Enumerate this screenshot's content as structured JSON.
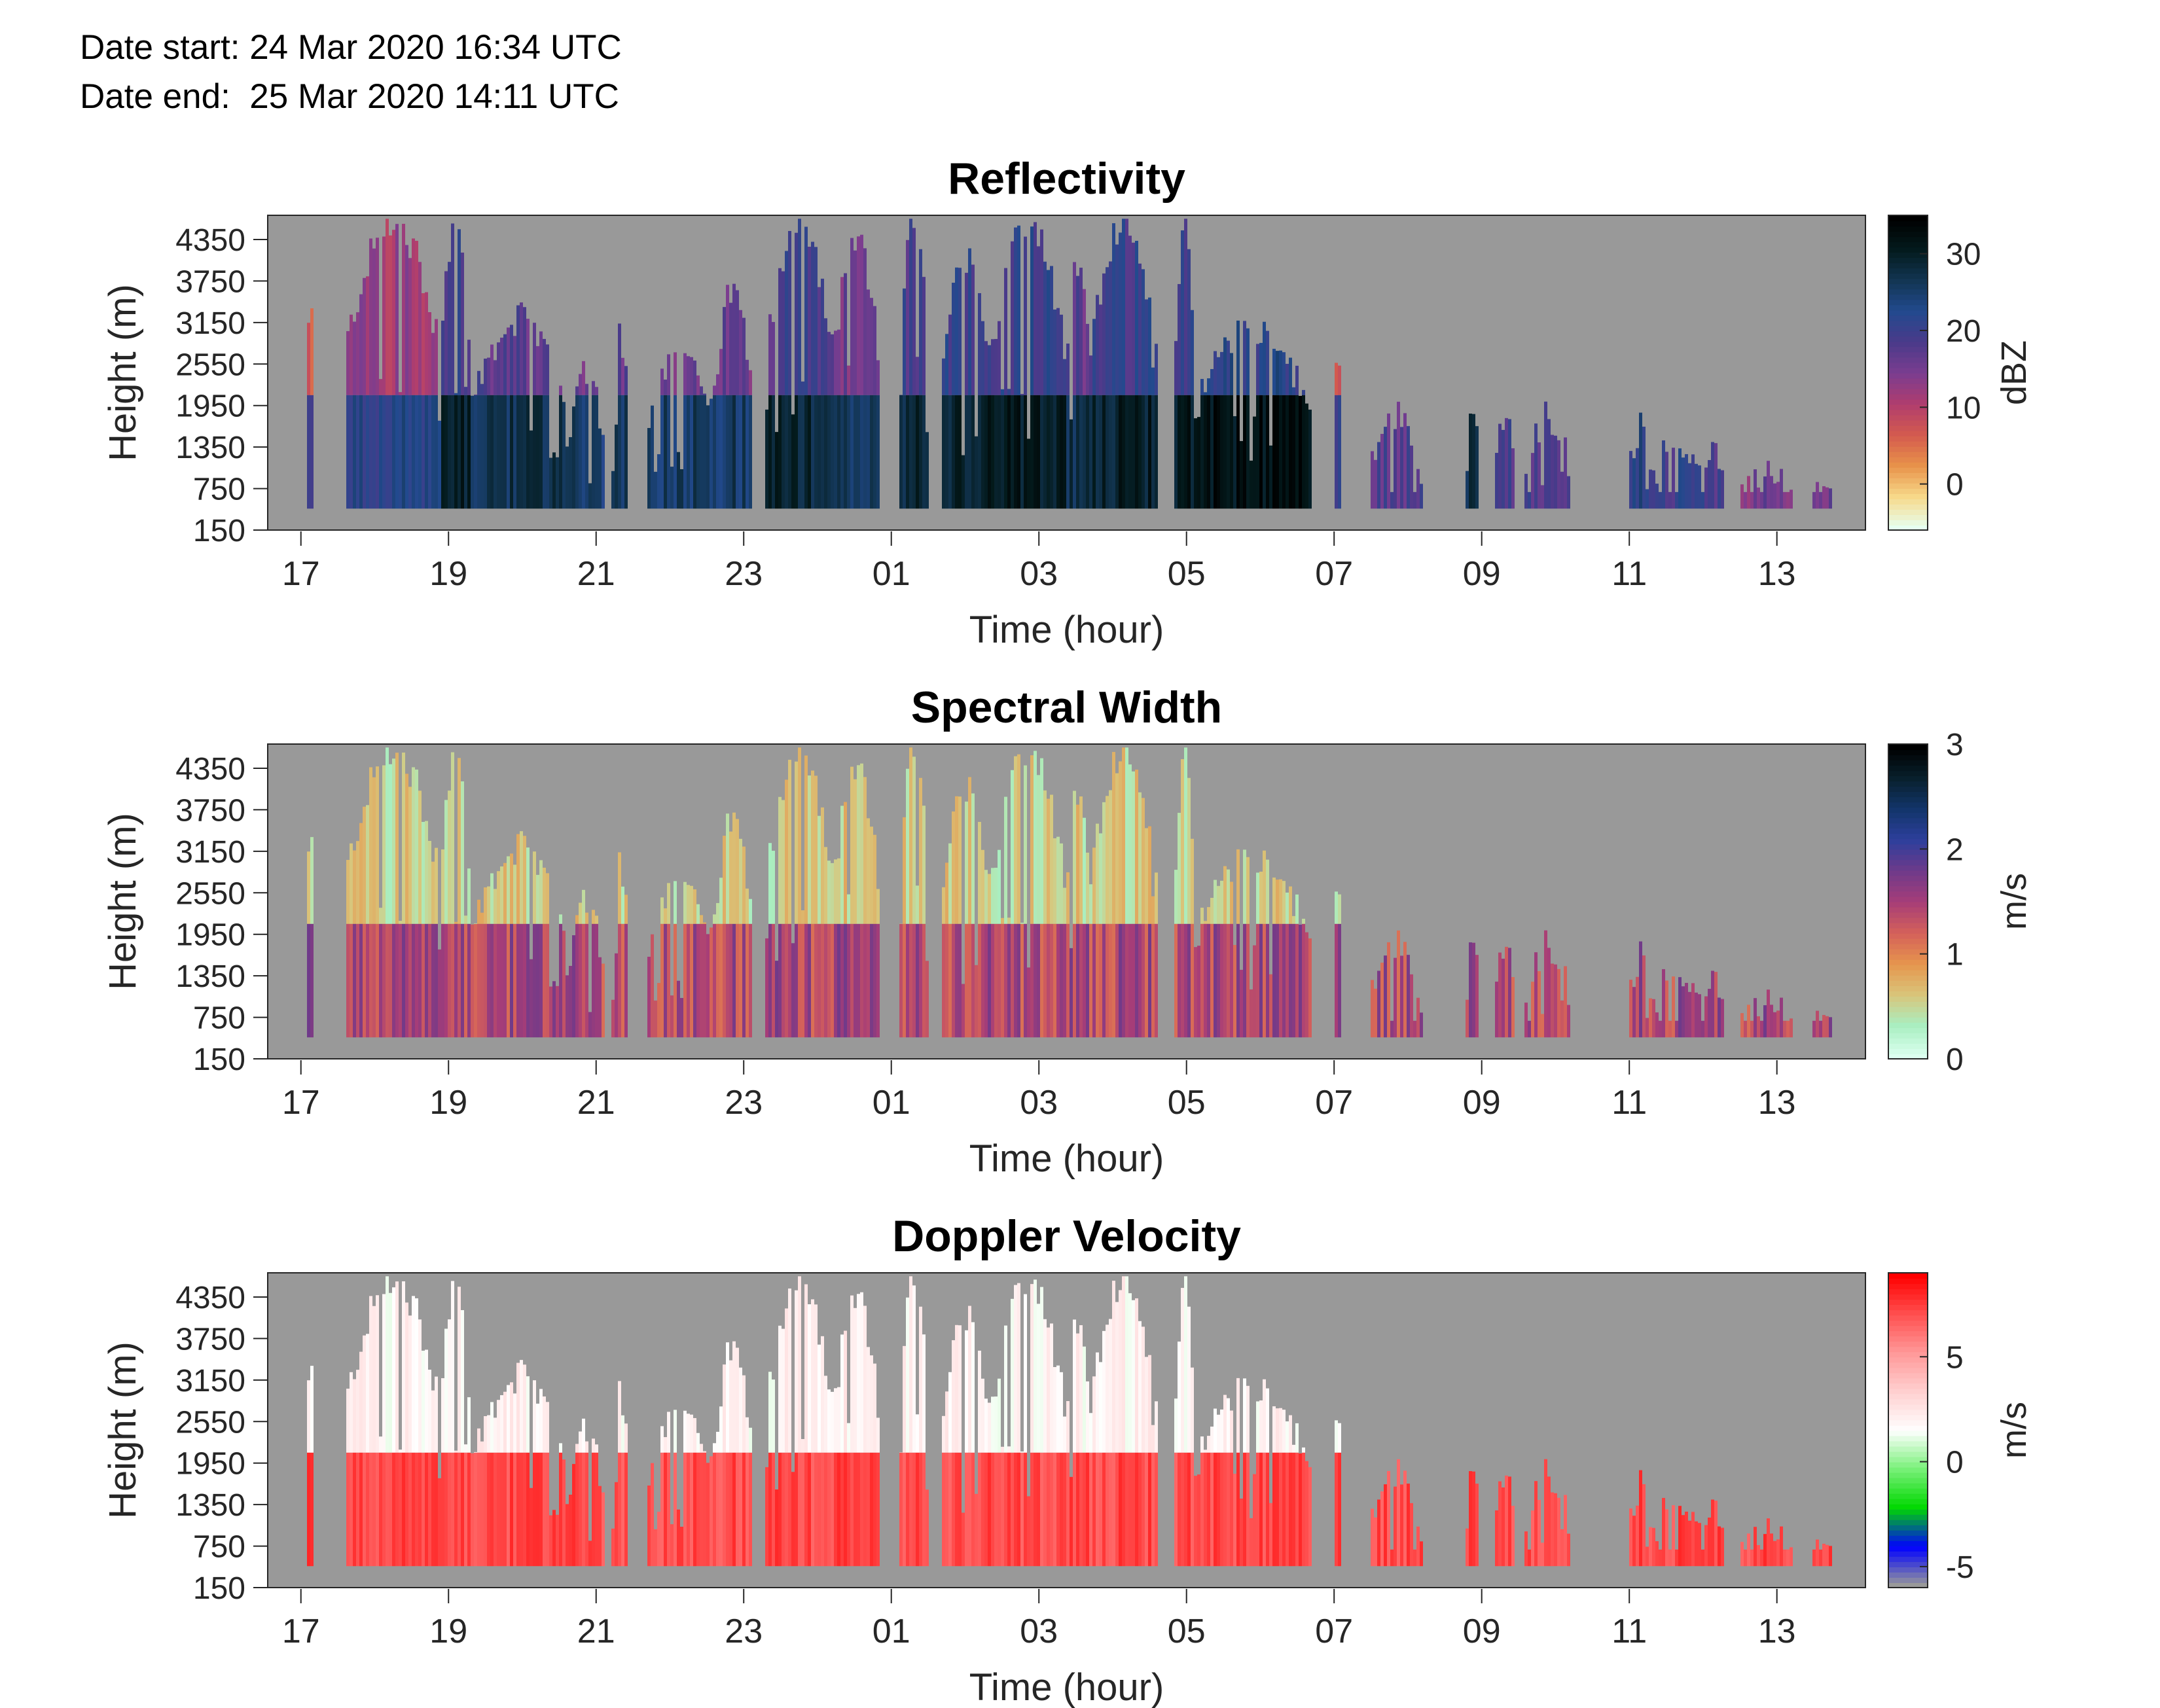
{
  "header": {
    "date_start": "Date start: 24 Mar 2020 16:34 UTC",
    "date_end": "Date end:  25 Mar 2020 14:11 UTC"
  },
  "colors": {
    "no_data": "#999999",
    "reflectivity_scale": [
      "#e6fff0",
      "#f7d98a",
      "#e8934a",
      "#d45a4e",
      "#b03d6e",
      "#7a3d90",
      "#4a3a8a",
      "#224a8e",
      "#123552",
      "#031a1c",
      "#000000"
    ],
    "spectral_width_scale": [
      "#dcfff0",
      "#a9efc1",
      "#d9c57a",
      "#e6954d",
      "#d4605a",
      "#a63d78",
      "#6e3a8a",
      "#2d3f9c",
      "#12356a",
      "#08202c",
      "#000000"
    ],
    "doppler_velocity_scale": [
      "#999999",
      "#0000ff",
      "#00d800",
      "#77f077",
      "#ffffff",
      "#ffd0d0",
      "#ff9999",
      "#ff5050",
      "#ff0000"
    ]
  },
  "chart_data": [
    {
      "type": "heatmap",
      "title": "Reflectivity",
      "xlabel": "Time (hour)",
      "ylabel": "Height (m)",
      "x_ticks": [
        "17",
        "19",
        "21",
        "23",
        "01",
        "03",
        "05",
        "07",
        "09",
        "11",
        "13"
      ],
      "y_ticks": [
        "150",
        "750",
        "1350",
        "1950",
        "2550",
        "3150",
        "3750",
        "4350"
      ],
      "colorbar_label": "dBZ",
      "colorbar_ticks": [
        "0",
        "10",
        "20",
        "30"
      ],
      "colorbar_range": [
        -6,
        35
      ],
      "xlim": [
        16.55,
        38.2
      ],
      "ylim": [
        150,
        4700
      ],
      "grid": false,
      "echo_bottom_m": 460,
      "melting_layer_m": 2100,
      "echo_segments": [
        {
          "start": 17.08,
          "end": 17.18,
          "top": 3500,
          "value": 12
        },
        {
          "start": 17.6,
          "end": 18.9,
          "top": 4600,
          "value": 17
        },
        {
          "start": 18.9,
          "end": 19.3,
          "top": 4600,
          "value": 25
        },
        {
          "start": 19.3,
          "end": 20.6,
          "top": 3200,
          "value": 22
        },
        {
          "start": 20.6,
          "end": 21.1,
          "top": 2500,
          "value": 20
        },
        {
          "start": 21.2,
          "end": 21.45,
          "top": 2900,
          "value": 22
        },
        {
          "start": 21.7,
          "end": 22.6,
          "top": 2800,
          "value": 21
        },
        {
          "start": 22.6,
          "end": 23.1,
          "top": 3600,
          "value": 21
        },
        {
          "start": 23.3,
          "end": 24.2,
          "top": 4600,
          "value": 24
        },
        {
          "start": 24.2,
          "end": 24.85,
          "top": 4300,
          "value": 20
        },
        {
          "start": 25.1,
          "end": 25.5,
          "top": 4600,
          "value": 24
        },
        {
          "start": 25.7,
          "end": 26.35,
          "top": 4100,
          "value": 25
        },
        {
          "start": 26.35,
          "end": 27.35,
          "top": 4600,
          "value": 26
        },
        {
          "start": 27.35,
          "end": 27.7,
          "top": 4000,
          "value": 22
        },
        {
          "start": 27.7,
          "end": 28.6,
          "top": 4600,
          "value": 25
        },
        {
          "start": 28.85,
          "end": 29.1,
          "top": 4600,
          "value": 26
        },
        {
          "start": 29.1,
          "end": 30.7,
          "top": 3100,
          "value": 27
        },
        {
          "start": 31.0,
          "end": 31.1,
          "top": 2600,
          "value": 14
        },
        {
          "start": 31.5,
          "end": 32.2,
          "top": 1800,
          "value": 13
        },
        {
          "start": 32.8,
          "end": 32.95,
          "top": 2000,
          "value": 22
        },
        {
          "start": 33.2,
          "end": 33.45,
          "top": 1900,
          "value": 14
        },
        {
          "start": 33.6,
          "end": 34.2,
          "top": 1800,
          "value": 14
        },
        {
          "start": 35.0,
          "end": 35.3,
          "top": 1600,
          "value": 17
        },
        {
          "start": 35.3,
          "end": 36.0,
          "top": 1400,
          "value": 15
        },
        {
          "start": 36.0,
          "end": 36.3,
          "top": 1300,
          "value": 13
        },
        {
          "start": 36.5,
          "end": 37.2,
          "top": 1000,
          "value": 10
        },
        {
          "start": 37.5,
          "end": 37.75,
          "top": 1000,
          "value": 10
        }
      ]
    },
    {
      "type": "heatmap",
      "title": "Spectral Width",
      "xlabel": "Time (hour)",
      "ylabel": "Height (m)",
      "x_ticks": [
        "17",
        "19",
        "21",
        "23",
        "01",
        "03",
        "05",
        "07",
        "09",
        "11",
        "13"
      ],
      "y_ticks": [
        "150",
        "750",
        "1350",
        "1950",
        "2550",
        "3150",
        "3750",
        "4350"
      ],
      "colorbar_label": "m/s",
      "colorbar_ticks": [
        "0",
        "1",
        "2",
        "3"
      ],
      "colorbar_range": [
        0,
        3
      ],
      "xlim": [
        16.55,
        38.2
      ],
      "ylim": [
        150,
        4700
      ],
      "grid": false,
      "echo_bottom_m": 460,
      "melting_layer_m": 2100,
      "upper_value": 0.3,
      "lower_value": 1.1
    },
    {
      "type": "heatmap",
      "title": "Doppler Velocity",
      "xlabel": "Time (hour)",
      "ylabel": "Height (m)",
      "x_ticks": [
        "17",
        "19",
        "21",
        "23",
        "01",
        "03",
        "05",
        "07",
        "09",
        "11",
        "13"
      ],
      "y_ticks": [
        "150",
        "750",
        "1350",
        "1950",
        "2550",
        "3150",
        "3750",
        "4350"
      ],
      "colorbar_label": "m/s",
      "colorbar_ticks": [
        "-5",
        "0",
        "5"
      ],
      "colorbar_range": [
        -6,
        9
      ],
      "xlim": [
        16.55,
        38.2
      ],
      "ylim": [
        150,
        4700
      ],
      "grid": false,
      "echo_bottom_m": 460,
      "melting_layer_m": 2100,
      "upper_value": 1.2,
      "lower_value": 6.5
    }
  ]
}
